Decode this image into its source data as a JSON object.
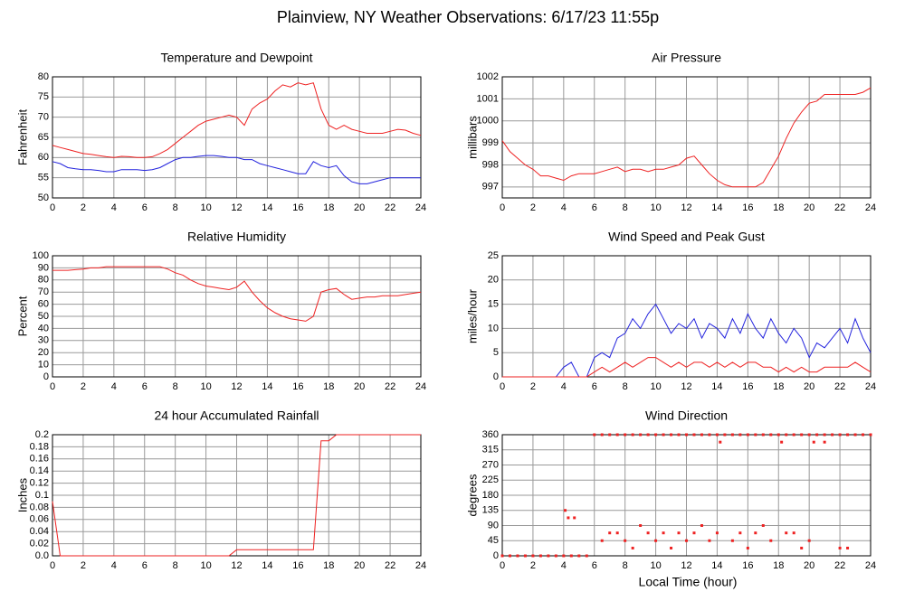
{
  "title": "Plainview, NY Weather Observations: 6/17/23 11:55p",
  "xlabel": "Local Time (hour)",
  "chart_data": [
    {
      "type": "line",
      "title": "Temperature and Dewpoint",
      "ylabel": "Fahrenheit",
      "x": [
        0,
        0.5,
        1,
        1.5,
        2,
        2.5,
        3,
        3.5,
        4,
        4.5,
        5,
        5.5,
        6,
        6.5,
        7,
        7.5,
        8,
        8.5,
        9,
        9.5,
        10,
        10.5,
        11,
        11.5,
        12,
        12.5,
        13,
        13.5,
        14,
        14.5,
        15,
        15.5,
        16,
        16.5,
        17,
        17.5,
        18,
        18.5,
        19,
        19.5,
        20,
        20.5,
        21,
        21.5,
        22,
        22.5,
        23,
        23.5,
        24
      ],
      "series": [
        {
          "color": "#ee2222",
          "values": [
            63,
            62.5,
            62,
            61.5,
            61,
            60.8,
            60.5,
            60.2,
            60,
            60.3,
            60.2,
            60,
            60,
            60.2,
            61,
            62,
            63.5,
            65,
            66.5,
            68,
            69,
            69.5,
            70,
            70.5,
            70,
            68,
            72,
            73.5,
            74.5,
            76.5,
            78,
            77.5,
            78.5,
            78,
            78.5,
            72,
            68,
            67,
            68,
            67,
            66.5,
            66,
            66,
            66,
            66.5,
            67,
            66.8,
            66,
            65.5
          ]
        },
        {
          "color": "#2222dd",
          "values": [
            59,
            58.5,
            57.5,
            57.2,
            57,
            57,
            56.8,
            56.5,
            56.5,
            57,
            57,
            57,
            56.8,
            57,
            57.5,
            58.5,
            59.5,
            60,
            60,
            60.3,
            60.5,
            60.5,
            60.3,
            60,
            60,
            59.5,
            59.5,
            58.5,
            58,
            57.5,
            57,
            56.5,
            56,
            56,
            59,
            58,
            57.5,
            58,
            55.5,
            54,
            53.5,
            53.5,
            54,
            54.5,
            55,
            55,
            55,
            55,
            55
          ]
        }
      ],
      "xlim": [
        0,
        24
      ],
      "xticks": [
        0,
        2,
        4,
        6,
        8,
        10,
        12,
        14,
        16,
        18,
        20,
        22,
        24
      ],
      "ylim": [
        50,
        80
      ],
      "yticks": [
        50,
        55,
        60,
        65,
        70,
        75,
        80
      ],
      "grid": true
    },
    {
      "type": "line",
      "title": "Air Pressure",
      "ylabel": "millibars",
      "x": [
        0,
        0.5,
        1,
        1.5,
        2,
        2.5,
        3,
        3.5,
        4,
        4.5,
        5,
        5.5,
        6,
        6.5,
        7,
        7.5,
        8,
        8.5,
        9,
        9.5,
        10,
        10.5,
        11,
        11.5,
        12,
        12.5,
        13,
        13.5,
        14,
        14.5,
        15,
        15.5,
        16,
        16.5,
        17,
        17.5,
        18,
        18.5,
        19,
        19.5,
        20,
        20.5,
        21,
        21.5,
        22,
        22.5,
        23,
        23.5,
        24
      ],
      "series": [
        {
          "color": "#ee2222",
          "values": [
            999.1,
            998.6,
            998.3,
            998,
            997.8,
            997.5,
            997.5,
            997.4,
            997.3,
            997.5,
            997.6,
            997.6,
            997.6,
            997.7,
            997.8,
            997.9,
            997.7,
            997.8,
            997.8,
            997.7,
            997.8,
            997.8,
            997.9,
            998,
            998.3,
            998.4,
            998,
            997.6,
            997.3,
            997.1,
            997,
            997,
            997,
            997,
            997.2,
            997.8,
            998.4,
            999.2,
            999.9,
            1000.4,
            1000.8,
            1000.9,
            1001.2,
            1001.2,
            1001.2,
            1001.2,
            1001.2,
            1001.3,
            1001.5
          ]
        }
      ],
      "xlim": [
        0,
        24
      ],
      "xticks": [
        0,
        2,
        4,
        6,
        8,
        10,
        12,
        14,
        16,
        18,
        20,
        22,
        24
      ],
      "ylim": [
        996.5,
        1002
      ],
      "yticks": [
        997,
        998,
        999,
        1000,
        1001,
        1002
      ],
      "grid": true
    },
    {
      "type": "line",
      "title": "Relative Humidity",
      "ylabel": "Percent",
      "x": [
        0,
        0.5,
        1,
        1.5,
        2,
        2.5,
        3,
        3.5,
        4,
        4.5,
        5,
        5.5,
        6,
        6.5,
        7,
        7.5,
        8,
        8.5,
        9,
        9.5,
        10,
        10.5,
        11,
        11.5,
        12,
        12.5,
        13,
        13.5,
        14,
        14.5,
        15,
        15.5,
        16,
        16.5,
        17,
        17.5,
        18,
        18.5,
        19,
        19.5,
        20,
        20.5,
        21,
        21.5,
        22,
        22.5,
        23,
        23.5,
        24
      ],
      "series": [
        {
          "color": "#ee2222",
          "values": [
            88,
            88,
            88,
            88.5,
            89,
            90,
            90,
            91,
            91,
            91,
            91,
            91,
            91,
            91,
            91,
            89,
            86,
            84,
            80,
            77,
            75,
            74,
            73,
            72,
            74,
            79,
            70,
            63,
            57,
            53,
            50,
            48,
            47,
            46,
            50,
            70,
            72,
            73,
            68,
            64,
            65,
            66,
            66,
            67,
            67,
            67,
            68,
            69,
            70
          ]
        }
      ],
      "xlim": [
        0,
        24
      ],
      "xticks": [
        0,
        2,
        4,
        6,
        8,
        10,
        12,
        14,
        16,
        18,
        20,
        22,
        24
      ],
      "ylim": [
        0,
        100
      ],
      "yticks": [
        0,
        10,
        20,
        30,
        40,
        50,
        60,
        70,
        80,
        90,
        100
      ],
      "grid": true
    },
    {
      "type": "line",
      "title": "Wind Speed and Peak Gust",
      "ylabel": "miles/hour",
      "x": [
        0,
        0.5,
        1,
        1.5,
        2,
        2.5,
        3,
        3.5,
        4,
        4.5,
        5,
        5.5,
        6,
        6.5,
        7,
        7.5,
        8,
        8.5,
        9,
        9.5,
        10,
        10.5,
        11,
        11.5,
        12,
        12.5,
        13,
        13.5,
        14,
        14.5,
        15,
        15.5,
        16,
        16.5,
        17,
        17.5,
        18,
        18.5,
        19,
        19.5,
        20,
        20.5,
        21,
        21.5,
        22,
        22.5,
        23,
        23.5,
        24
      ],
      "series": [
        {
          "color": "#2222dd",
          "values": [
            0,
            0,
            0,
            0,
            0,
            0,
            0,
            0,
            2,
            3,
            0,
            0,
            4,
            5,
            4,
            8,
            9,
            12,
            10,
            13,
            15,
            12,
            9,
            11,
            10,
            12,
            8,
            11,
            10,
            8,
            12,
            9,
            13,
            10,
            8,
            12,
            9,
            7,
            10,
            8,
            4,
            7,
            6,
            8,
            10,
            7,
            12,
            8,
            5
          ]
        },
        {
          "color": "#ee2222",
          "values": [
            0,
            0,
            0,
            0,
            0,
            0,
            0,
            0,
            0,
            0,
            0,
            0,
            1,
            2,
            1,
            2,
            3,
            2,
            3,
            4,
            4,
            3,
            2,
            3,
            2,
            3,
            3,
            2,
            3,
            2,
            3,
            2,
            3,
            3,
            2,
            2,
            1,
            2,
            1,
            2,
            1,
            1,
            2,
            2,
            2,
            2,
            3,
            2,
            1
          ]
        }
      ],
      "xlim": [
        0,
        24
      ],
      "xticks": [
        0,
        2,
        4,
        6,
        8,
        10,
        12,
        14,
        16,
        18,
        20,
        22,
        24
      ],
      "ylim": [
        0,
        25
      ],
      "yticks": [
        0,
        5,
        10,
        15,
        20,
        25
      ],
      "grid": true
    },
    {
      "type": "line",
      "title": "24 hour Accumulated Rainfall",
      "ylabel": "Inches",
      "x": [
        0,
        0.5,
        1,
        1.5,
        2,
        2.5,
        3,
        3.5,
        4,
        4.5,
        5,
        5.5,
        6,
        6.5,
        7,
        7.5,
        8,
        8.5,
        9,
        9.5,
        10,
        10.5,
        11,
        11.5,
        12,
        12.5,
        13,
        13.5,
        14,
        14.5,
        15,
        15.5,
        16,
        16.5,
        17,
        17.5,
        18,
        18.5,
        19,
        19.5,
        20,
        20.5,
        21,
        21.5,
        22,
        22.5,
        23,
        23.5,
        24
      ],
      "series": [
        {
          "color": "#ee2222",
          "values": [
            0.09,
            0,
            0,
            0,
            0,
            0,
            0,
            0,
            0,
            0,
            0,
            0,
            0,
            0,
            0,
            0,
            0,
            0,
            0,
            0,
            0,
            0,
            0,
            0,
            0.01,
            0.01,
            0.01,
            0.01,
            0.01,
            0.01,
            0.01,
            0.01,
            0.01,
            0.01,
            0.01,
            0.19,
            0.19,
            0.2,
            0.2,
            0.2,
            0.2,
            0.2,
            0.2,
            0.2,
            0.2,
            0.2,
            0.2,
            0.2,
            0.2
          ]
        }
      ],
      "xlim": [
        0,
        24
      ],
      "xticks": [
        0,
        2,
        4,
        6,
        8,
        10,
        12,
        14,
        16,
        18,
        20,
        22,
        24
      ],
      "ylim": [
        0,
        0.2
      ],
      "yticks": [
        {
          "value": 0,
          "label": "0.0"
        },
        0.02,
        0.04,
        0.06,
        0.08,
        0.1,
        0.12,
        0.14,
        0.16,
        0.18,
        0.2
      ],
      "grid": true
    },
    {
      "type": "scatter",
      "title": "Wind Direction",
      "ylabel": "degrees",
      "x": [
        0,
        0.5,
        1,
        1.5,
        2,
        2.5,
        3,
        3.5,
        4,
        4.5,
        5,
        5.5,
        4.1,
        4.3,
        4.7,
        6,
        6.5,
        7,
        7.5,
        8,
        8.5,
        9,
        9.5,
        10,
        10.5,
        11,
        11.5,
        12,
        12.5,
        13,
        13.5,
        14,
        14.5,
        15,
        15.5,
        16,
        16.5,
        17,
        17.5,
        18,
        18.5,
        19,
        19.5,
        20,
        20.5,
        21,
        21.5,
        22,
        22.5,
        23,
        23.5,
        24,
        6.5,
        7,
        7.5,
        8,
        8.5,
        9,
        9.5,
        10,
        10.5,
        11,
        11.5,
        12,
        12.5,
        13,
        13.5,
        14,
        14.2,
        15,
        15.5,
        16,
        16.5,
        17,
        17.5,
        18.2,
        18.5,
        19,
        19.5,
        20,
        20.3,
        21,
        22,
        22.5
      ],
      "series": [
        {
          "color": "#ee2222",
          "values": [
            0,
            0,
            0,
            0,
            0,
            0,
            0,
            0,
            0,
            0,
            0,
            0,
            135,
            113,
            113,
            360,
            360,
            360,
            360,
            360,
            360,
            360,
            360,
            360,
            360,
            360,
            360,
            360,
            360,
            360,
            360,
            360,
            360,
            360,
            360,
            360,
            360,
            360,
            360,
            360,
            360,
            360,
            360,
            360,
            360,
            360,
            360,
            360,
            360,
            360,
            360,
            360,
            45,
            68,
            68,
            45,
            23,
            90,
            68,
            45,
            68,
            23,
            68,
            45,
            68,
            90,
            45,
            68,
            338,
            45,
            68,
            23,
            68,
            90,
            45,
            338,
            68,
            68,
            23,
            45,
            338,
            338,
            23,
            23
          ]
        }
      ],
      "xlim": [
        0,
        24
      ],
      "xticks": [
        0,
        2,
        4,
        6,
        8,
        10,
        12,
        14,
        16,
        18,
        20,
        22,
        24
      ],
      "ylim": [
        0,
        360
      ],
      "yticks": [
        0,
        45,
        90,
        135,
        180,
        225,
        270,
        315,
        360
      ],
      "grid": true
    }
  ]
}
